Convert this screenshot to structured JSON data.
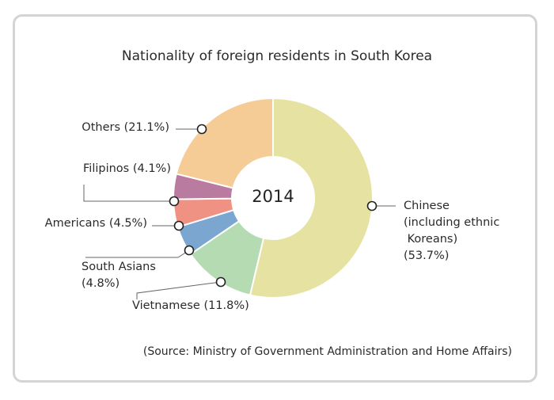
{
  "chart_data": {
    "type": "pie",
    "style": "donut",
    "title": "Nationality of foreign residents in South Korea",
    "center_label": "2014",
    "source": "(Source: Ministry of Government Administration and Home Affairs)",
    "slices": [
      {
        "category": "Chinese (including ethnic Koreans)",
        "value": 53.7,
        "color": "#e6e3a2",
        "label_lines": [
          "Chinese",
          "(including ethnic",
          " Koreans)",
          "(53.7%)"
        ]
      },
      {
        "category": "Vietnamese",
        "value": 11.8,
        "color": "#b4dbb2",
        "label_lines": [
          "Vietnamese (11.8%)"
        ]
      },
      {
        "category": "South Asians",
        "value": 4.8,
        "color": "#7aa6cf",
        "label_lines": [
          "South Asians",
          "(4.8%)"
        ]
      },
      {
        "category": "Americans",
        "value": 4.5,
        "color": "#ef9283",
        "label_lines": [
          "Americans (4.5%)"
        ]
      },
      {
        "category": "Filipinos",
        "value": 4.1,
        "color": "#b97ca0",
        "label_lines": [
          "Filipinos (4.1%)"
        ]
      },
      {
        "category": "Others",
        "value": 21.1,
        "color": "#f6cc96",
        "label_lines": [
          "Others (21.1%)"
        ]
      }
    ]
  }
}
